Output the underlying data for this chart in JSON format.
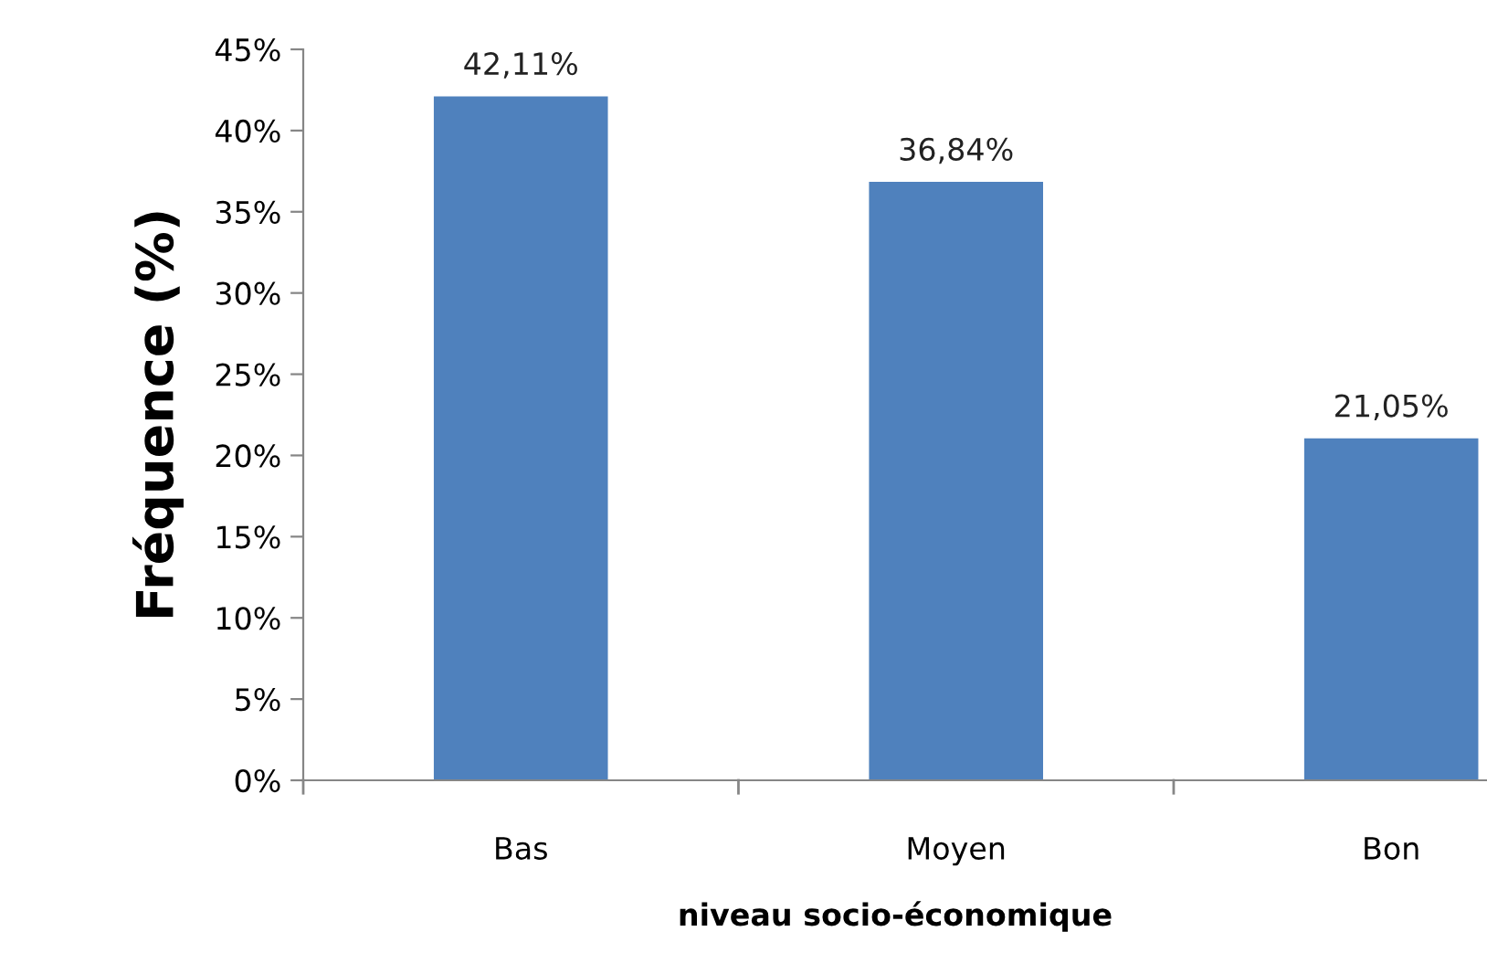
{
  "chart_data": {
    "type": "bar",
    "xlabel": "niveau socio-économique",
    "ylabel": "Fréquence (%)",
    "categories": [
      "Bas",
      "Moyen",
      "Bon"
    ],
    "values": [
      42.11,
      36.84,
      21.05
    ],
    "value_labels": [
      "42,11%",
      "36,84%",
      "21,05%"
    ],
    "color": "#4f81bd",
    "ylim": [
      0,
      45
    ],
    "yticks": [
      {
        "value": 0,
        "label": "0%"
      },
      {
        "value": 5,
        "label": "5%"
      },
      {
        "value": 10,
        "label": "10%"
      },
      {
        "value": 15,
        "label": "15%"
      },
      {
        "value": 20,
        "label": "20%"
      },
      {
        "value": 25,
        "label": "25%"
      },
      {
        "value": 30,
        "label": "30%"
      },
      {
        "value": 35,
        "label": "35%"
      },
      {
        "value": 40,
        "label": "40%"
      },
      {
        "value": 45,
        "label": "45%"
      }
    ],
    "grid": false
  }
}
